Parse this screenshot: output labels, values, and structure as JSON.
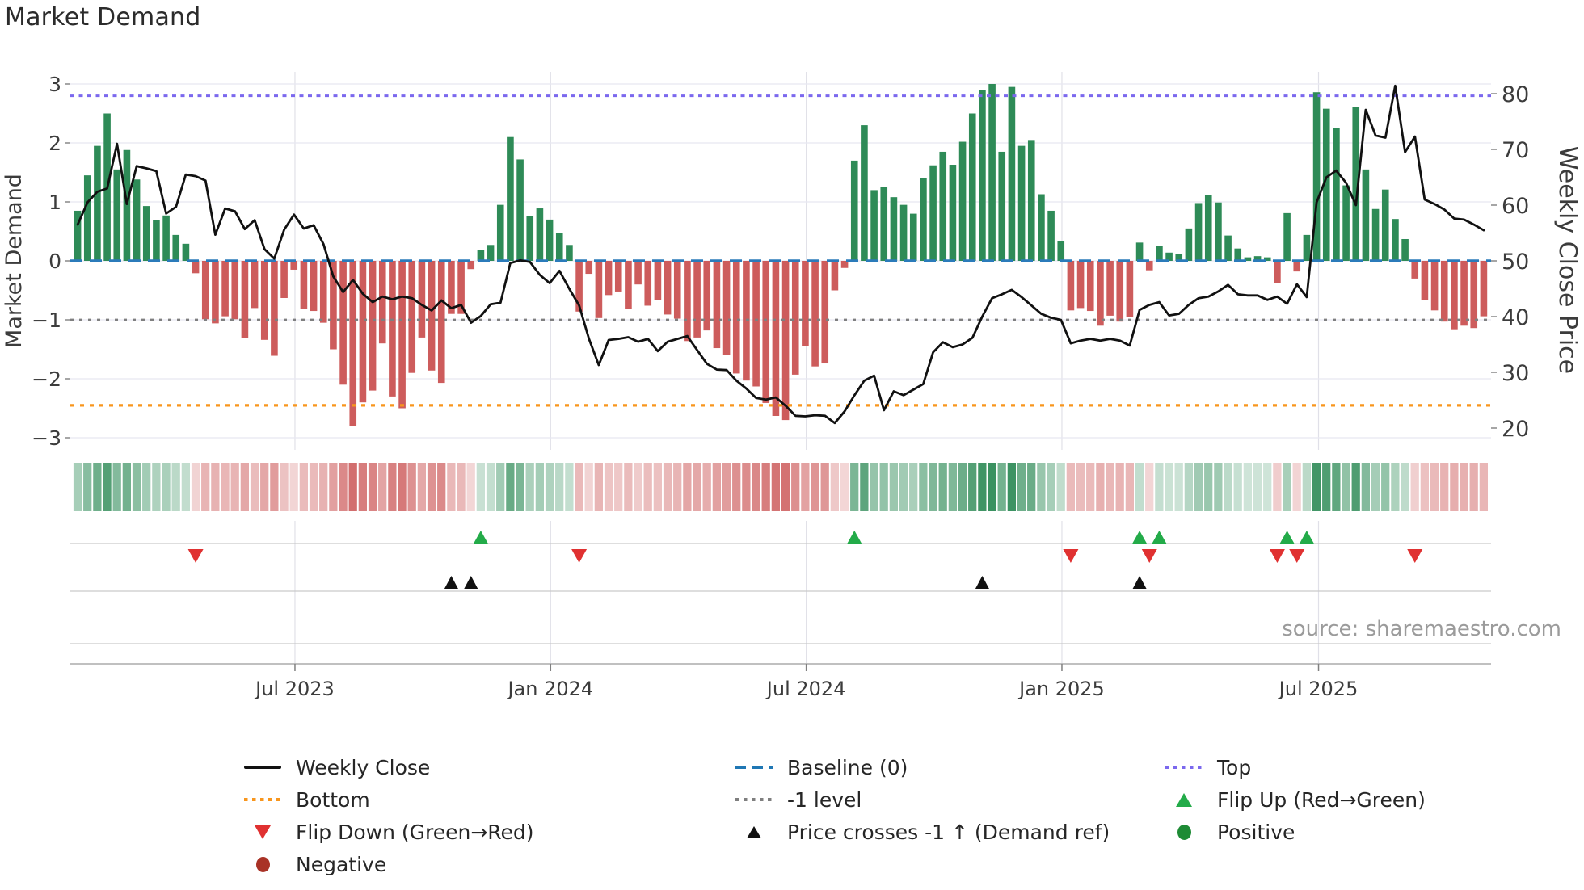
{
  "title": "Market Demand",
  "source": "source: sharemaestro.com",
  "left_axis": {
    "label": "Market Demand",
    "ticks": [
      "3",
      "2",
      "1",
      "0",
      "−1",
      "−2",
      "−3"
    ],
    "tick_values": [
      3,
      2,
      1,
      0,
      -1,
      -2,
      -3
    ]
  },
  "right_axis": {
    "label": "Weekly Close Price",
    "ticks": [
      "80",
      "70",
      "60",
      "50",
      "40",
      "30",
      "20"
    ],
    "tick_values": [
      80,
      70,
      60,
      50,
      40,
      30,
      20
    ]
  },
  "x_axis": {
    "ticks": [
      "Jul 2023",
      "Jan 2024",
      "Jul 2024",
      "Jan 2025",
      "Jul 2025"
    ],
    "tick_indices": [
      22.1,
      48.1,
      74.1,
      100.1,
      126.2
    ]
  },
  "legend": {
    "weekly_close": "Weekly Close",
    "baseline": "Baseline (0)",
    "top": "Top",
    "bottom": "Bottom",
    "minus_one": "-1 level",
    "flip_up": "Flip Up (Red→Green)",
    "flip_down": "Flip Down (Green→Red)",
    "price_cross": "Price crosses -1 ↑ (Demand ref)",
    "positive": "Positive",
    "negative": "Negative"
  },
  "colors": {
    "positive_bar": "#2e8b57",
    "negative_bar": "#cd5c5c",
    "price_line": "#111111",
    "baseline": "#2b7bba",
    "top_line": "#7b68ee",
    "bottom_line": "#f8961d",
    "minus_one_line": "#7f7f7f",
    "flip_up": "#23ab49",
    "flip_down": "#e03131",
    "price_cross": "#111111",
    "grid": "#e8e8f1",
    "vgrid": "#e0e0e8"
  },
  "chart_data": {
    "type": "bar",
    "title": "Market Demand",
    "xlabel": "",
    "ylabel_left": "Market Demand",
    "ylabel_right": "Weekly Close Price",
    "ylim_left": [
      -3.2,
      3.2
    ],
    "ylim_right": [
      16.1,
      83.9
    ],
    "grid": true,
    "legend_position": "bottom",
    "reference_lines": {
      "baseline": 0,
      "top": 2.8,
      "bottom": -2.45,
      "minus_one_level": -1
    },
    "series": [
      {
        "name": "Market Demand",
        "type": "bar",
        "axis": "left",
        "values": [
          0.85,
          1.45,
          1.95,
          2.5,
          1.55,
          1.88,
          1.38,
          0.93,
          0.69,
          0.77,
          0.44,
          0.29,
          -0.21,
          -0.99,
          -1.06,
          -0.94,
          -0.99,
          -1.31,
          -0.8,
          -1.34,
          -1.61,
          -0.63,
          -0.15,
          -0.81,
          -0.85,
          -1.05,
          -1.5,
          -2.1,
          -2.8,
          -2.4,
          -2.2,
          -1.4,
          -2.3,
          -2.5,
          -1.9,
          -1.3,
          -1.86,
          -2.07,
          -0.9,
          -0.9,
          -0.14,
          0.18,
          0.27,
          0.95,
          2.1,
          1.72,
          0.76,
          0.89,
          0.7,
          0.47,
          0.27,
          -0.86,
          -0.22,
          -0.97,
          -0.58,
          -0.52,
          -0.81,
          -0.4,
          -0.76,
          -0.66,
          -0.91,
          -0.98,
          -1.36,
          -1.3,
          -1.18,
          -1.48,
          -1.59,
          -1.91,
          -2.03,
          -2.13,
          -2.41,
          -2.63,
          -2.7,
          -1.93,
          -1.45,
          -1.79,
          -1.74,
          -0.5,
          -0.12,
          1.7,
          2.3,
          1.2,
          1.25,
          1.08,
          0.95,
          0.8,
          1.4,
          1.62,
          1.85,
          1.63,
          2.02,
          2.5,
          2.9,
          3.0,
          1.85,
          2.95,
          1.95,
          2.05,
          1.13,
          0.85,
          0.34,
          -0.84,
          -0.8,
          -0.85,
          -1.1,
          -0.93,
          -1.03,
          -0.95,
          0.31,
          -0.16,
          0.26,
          0.14,
          0.12,
          0.55,
          0.98,
          1.11,
          0.99,
          0.43,
          0.21,
          0.06,
          0.08,
          0.06,
          -0.37,
          0.81,
          -0.18,
          0.44,
          2.86,
          2.58,
          2.25,
          1.28,
          2.61,
          1.55,
          0.88,
          1.21,
          0.71,
          0.37,
          -0.3,
          -0.66,
          -0.84,
          -1.03,
          -1.16,
          -1.1,
          -1.14,
          -0.94
        ]
      },
      {
        "name": "Weekly Close",
        "type": "line",
        "axis": "right",
        "values": [
          56.5,
          60.5,
          62.4,
          63.0,
          71.0,
          60.2,
          67.0,
          66.6,
          66.1,
          58.5,
          59.7,
          65.5,
          65.2,
          64.4,
          54.7,
          59.4,
          58.9,
          55.7,
          57.3,
          52.1,
          50.4,
          55.6,
          58.3,
          55.8,
          56.4,
          53.0,
          47.2,
          44.4,
          46.6,
          44.1,
          42.6,
          43.6,
          43.1,
          43.6,
          43.3,
          42.1,
          41.1,
          42.9,
          41.5,
          42.1,
          38.9,
          40.1,
          42.2,
          42.5,
          49.6,
          50.1,
          49.8,
          47.5,
          46.0,
          48.2,
          45.0,
          42.0,
          36.0,
          31.3,
          35.8,
          36.0,
          36.3,
          35.5,
          36.0,
          33.8,
          35.5,
          36.0,
          36.5,
          34.0,
          31.5,
          30.5,
          30.4,
          28.5,
          27.1,
          25.4,
          25.1,
          25.5,
          24.0,
          22.2,
          22.1,
          22.3,
          22.2,
          20.9,
          23.0,
          25.9,
          28.5,
          29.4,
          23.2,
          26.6,
          25.9,
          26.9,
          27.9,
          33.6,
          35.4,
          34.5,
          35.0,
          36.2,
          40.0,
          43.3,
          44.0,
          44.8,
          43.5,
          42.0,
          40.5,
          39.8,
          39.4,
          35.2,
          35.7,
          36.0,
          35.7,
          36.0,
          35.7,
          34.8,
          41.2,
          42.1,
          42.6,
          40.2,
          40.5,
          42.1,
          43.3,
          43.6,
          44.5,
          45.7,
          44.0,
          43.8,
          43.8,
          43.0,
          43.6,
          42.3,
          45.8,
          43.5,
          60.5,
          65.0,
          66.2,
          64.0,
          60.0,
          77.1,
          72.5,
          72.1,
          81.4,
          69.5,
          72.3,
          61.0,
          60.2,
          59.2,
          57.6,
          57.4,
          56.5,
          55.5
        ]
      }
    ],
    "markers": {
      "flip_up_indices": [
        41,
        79,
        108,
        110,
        123,
        125
      ],
      "flip_down_indices": [
        12,
        51,
        101,
        109,
        122,
        124,
        136
      ],
      "price_cross_indices": [
        38,
        40,
        92,
        108
      ]
    },
    "heatmap": {
      "note": "strip below chart, cell shade derived from demand value sign and magnitude"
    }
  }
}
